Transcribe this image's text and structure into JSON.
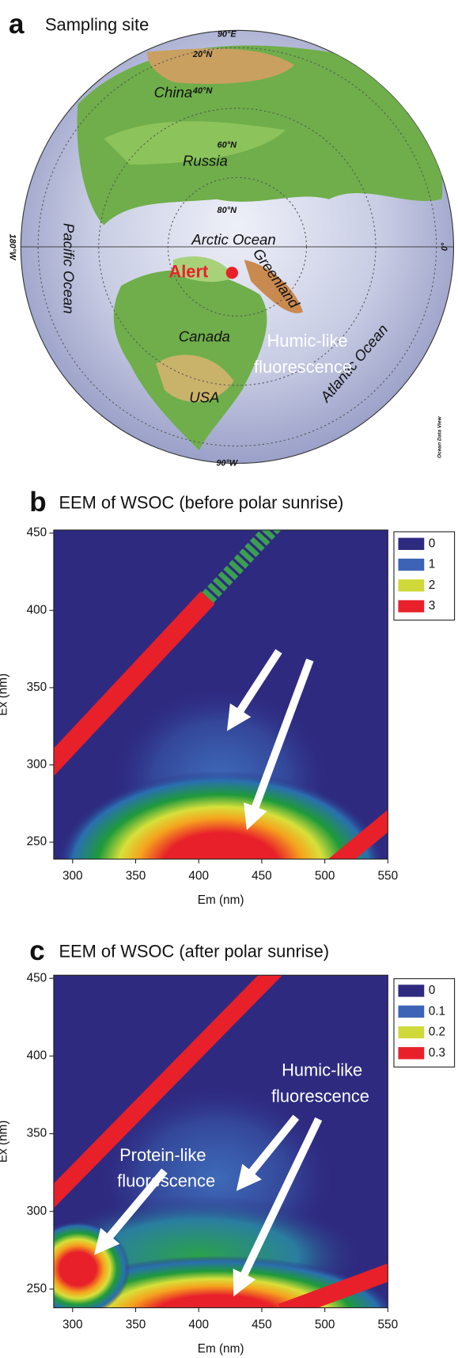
{
  "panel_a": {
    "letter": "a",
    "title": "Sampling site",
    "labels": [
      "90°E",
      "20°N",
      "40°N",
      "China",
      "60°N",
      "Russia",
      "80°N",
      "Arctic Ocean",
      "Pacific Ocean",
      "180°W",
      "0°",
      "Greenland",
      "Canada",
      "Atlantic Ocean",
      "USA",
      "Ocean Data View",
      "90°W"
    ],
    "site": "Alert"
  },
  "chart_data": [
    {
      "type": "contour",
      "letter": "b",
      "title": "EEM of WSOC (before polar sunrise)",
      "xlabel": "Em (nm)",
      "ylabel": "Ex (nm)",
      "xlim": [
        285,
        550
      ],
      "ylim": [
        239,
        452
      ],
      "xticks": [
        300,
        350,
        400,
        450,
        500,
        550
      ],
      "yticks": [
        250,
        300,
        350,
        400,
        450
      ],
      "legend": {
        "levels": [
          0,
          1,
          2,
          3
        ],
        "colors": [
          "#2e2a80",
          "#3d63b6",
          "#cfd93a",
          "#e8202a"
        ]
      },
      "annotations": [
        [
          "Humic-like",
          "fluorescence"
        ]
      ]
    },
    {
      "type": "contour",
      "letter": "c",
      "title": "EEM of WSOC (after polar sunrise)",
      "xlabel": "Em (nm)",
      "ylabel": "Ex (nm)",
      "xlim": [
        285,
        550
      ],
      "ylim": [
        238,
        452
      ],
      "xticks": [
        300,
        350,
        400,
        450,
        500,
        550
      ],
      "yticks": [
        250,
        300,
        350,
        400,
        450
      ],
      "legend": {
        "levels": [
          0,
          0.1,
          0.2,
          0.3
        ],
        "colors": [
          "#2e2a80",
          "#3d63b6",
          "#cfd93a",
          "#e8202a"
        ]
      },
      "annotations": [
        [
          "Humic-like",
          "fluorescence"
        ],
        [
          "Protein-like",
          "fluorescence"
        ]
      ]
    }
  ]
}
